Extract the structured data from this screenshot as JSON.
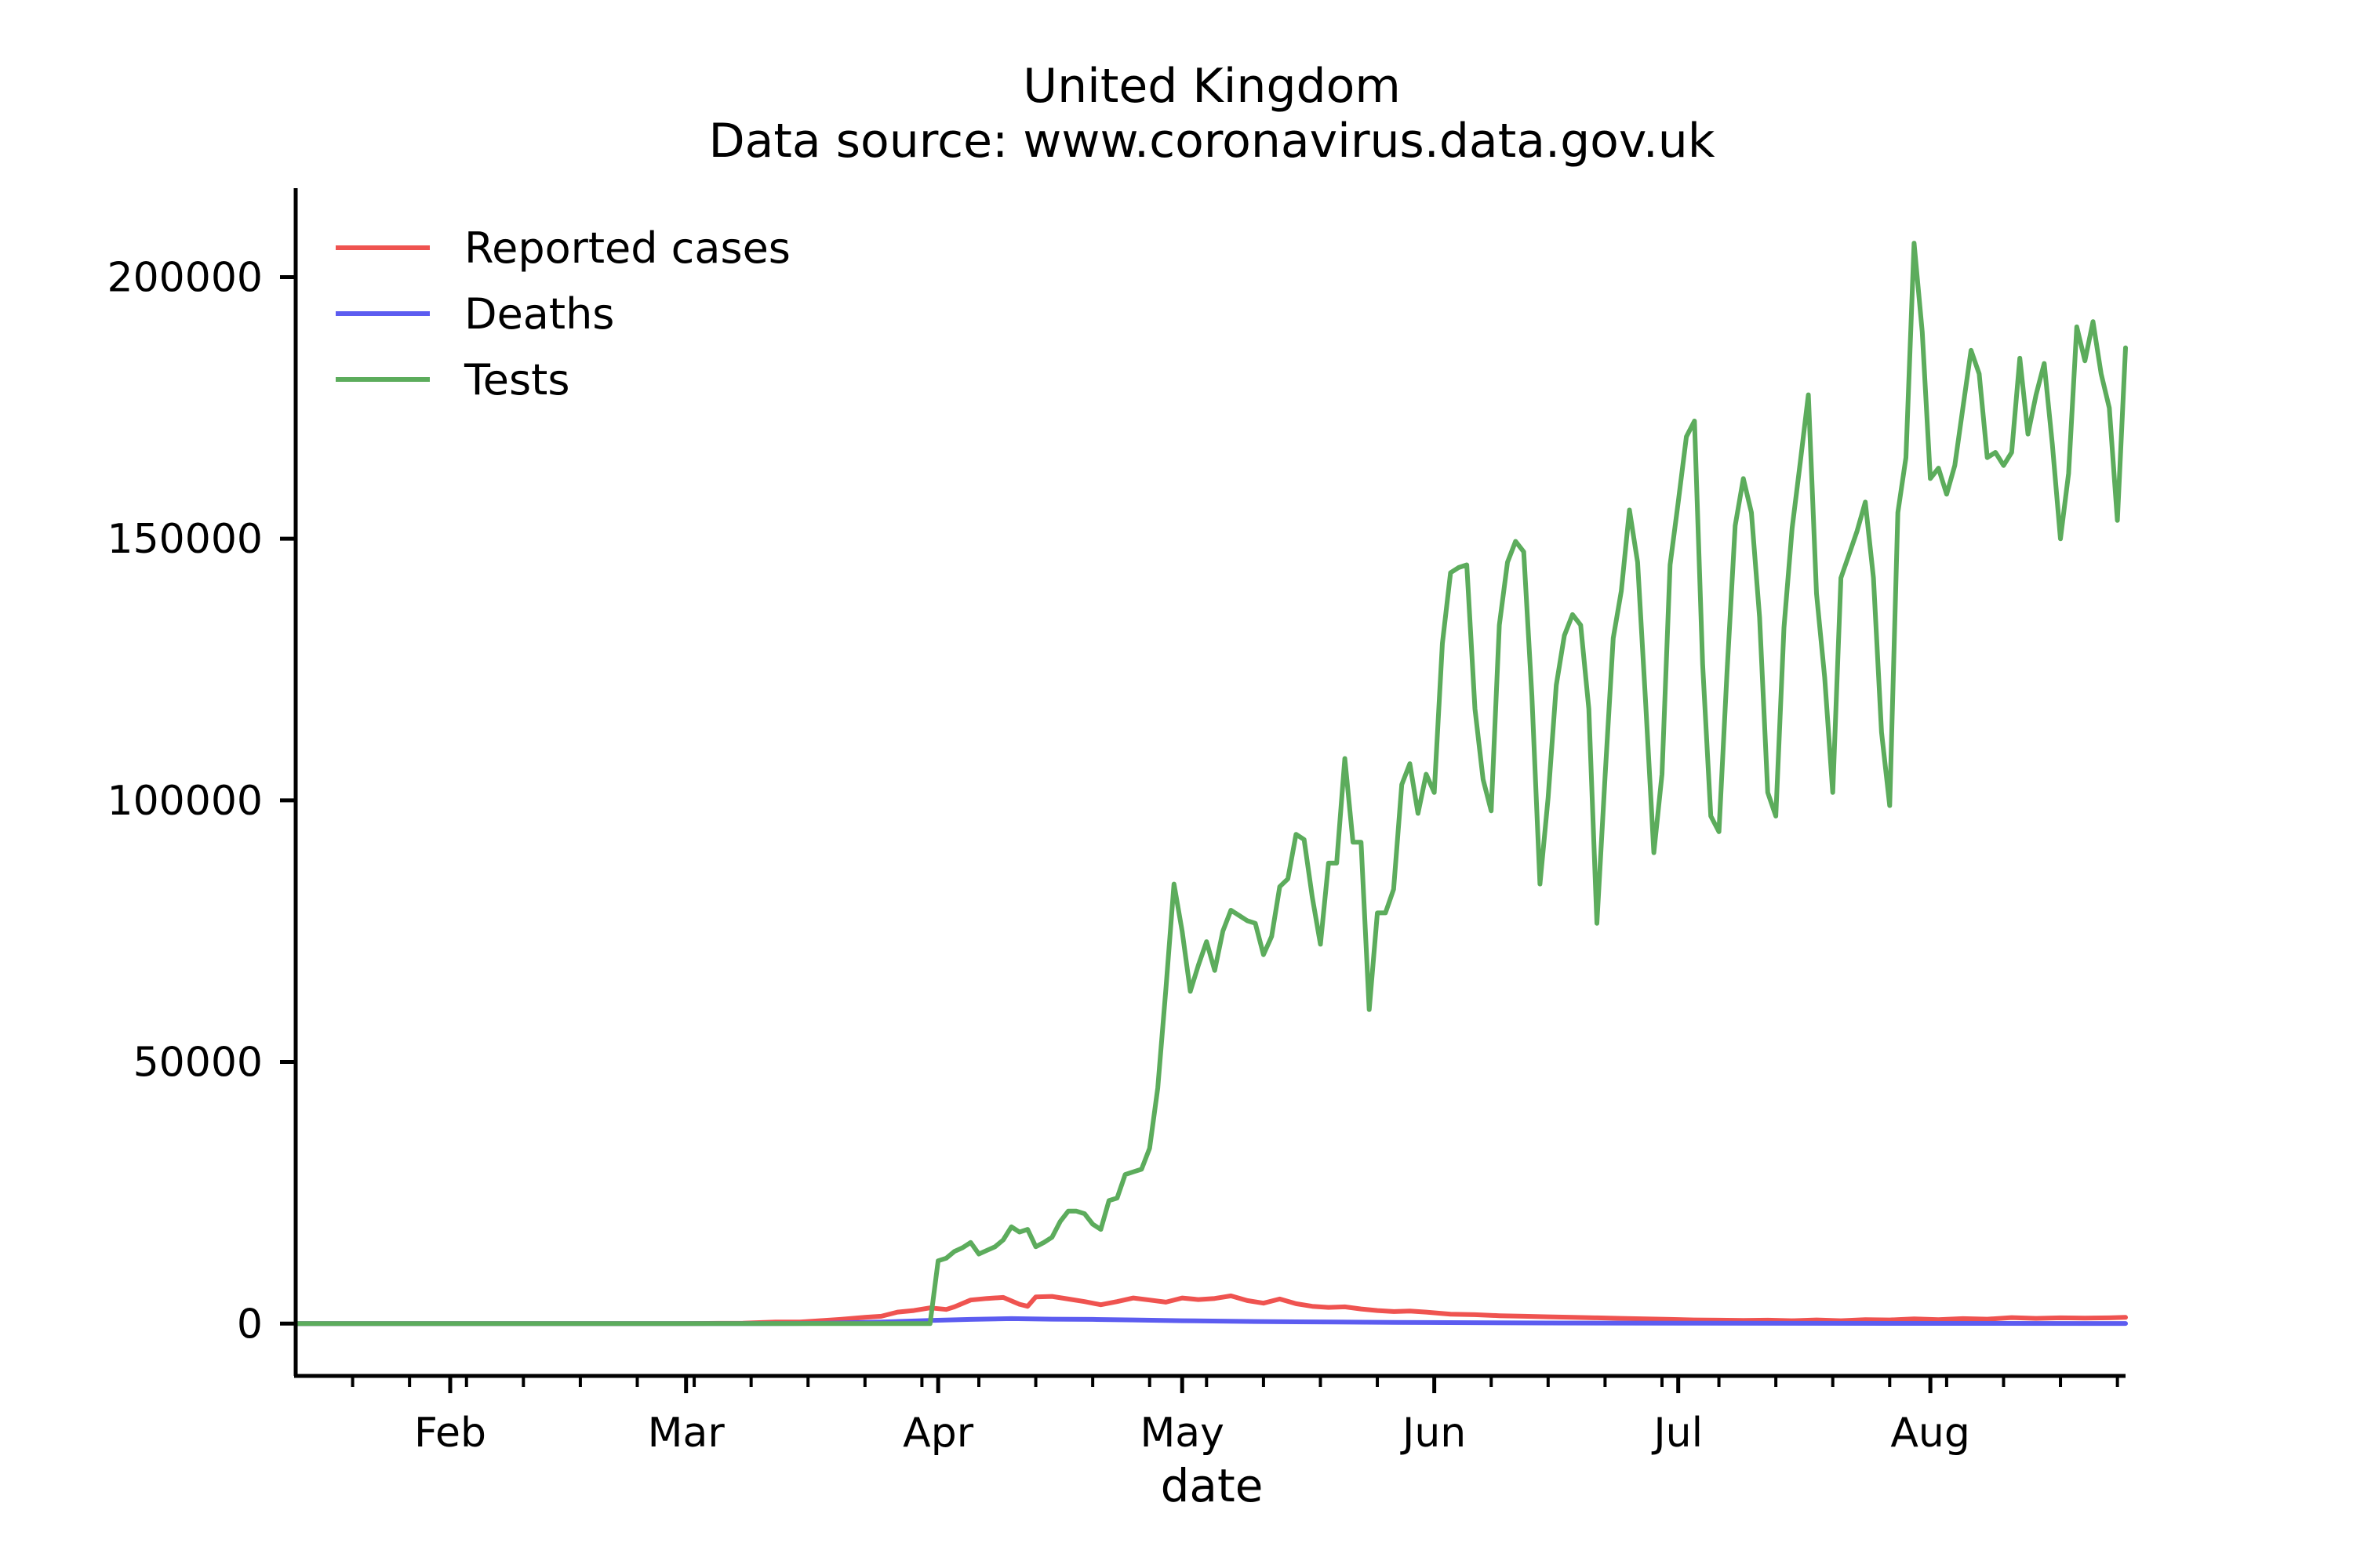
{
  "chart_data": {
    "type": "line",
    "title": "United Kingdom",
    "subtitle": "Data source: www.coronavirus.data.gov.uk",
    "xlabel": "date",
    "ylabel": "",
    "x_range": [
      "2020-01-13",
      "2020-08-25"
    ],
    "ylim": [
      -10000,
      217000
    ],
    "x_ticks": [
      {
        "date": "2020-02-01",
        "label": "Feb"
      },
      {
        "date": "2020-03-01",
        "label": "Mar"
      },
      {
        "date": "2020-04-01",
        "label": "Apr"
      },
      {
        "date": "2020-05-01",
        "label": "May"
      },
      {
        "date": "2020-06-01",
        "label": "Jun"
      },
      {
        "date": "2020-07-01",
        "label": "Jul"
      },
      {
        "date": "2020-08-01",
        "label": "Aug"
      }
    ],
    "y_ticks": [
      {
        "value": 0,
        "label": "0"
      },
      {
        "value": 50000,
        "label": "50000"
      },
      {
        "value": 100000,
        "label": "100000"
      },
      {
        "value": 150000,
        "label": "150000"
      },
      {
        "value": 200000,
        "label": "200000"
      }
    ],
    "grid": false,
    "legend_position": "top-left",
    "series": [
      {
        "name": "Reported cases",
        "color": "#ef5350",
        "points": [
          [
            "2020-01-13",
            0
          ],
          [
            "2020-02-29",
            0
          ],
          [
            "2020-03-05",
            50
          ],
          [
            "2020-03-08",
            80
          ],
          [
            "2020-03-12",
            300
          ],
          [
            "2020-03-15",
            300
          ],
          [
            "2020-03-18",
            600
          ],
          [
            "2020-03-20",
            800
          ],
          [
            "2020-03-23",
            1200
          ],
          [
            "2020-03-25",
            1400
          ],
          [
            "2020-03-27",
            2200
          ],
          [
            "2020-03-29",
            2500
          ],
          [
            "2020-03-31",
            3000
          ],
          [
            "2020-04-02",
            2700
          ],
          [
            "2020-04-03",
            3200
          ],
          [
            "2020-04-05",
            4500
          ],
          [
            "2020-04-07",
            4800
          ],
          [
            "2020-04-09",
            5000
          ],
          [
            "2020-04-11",
            3700
          ],
          [
            "2020-04-12",
            3300
          ],
          [
            "2020-04-13",
            5100
          ],
          [
            "2020-04-15",
            5200
          ],
          [
            "2020-04-17",
            4700
          ],
          [
            "2020-04-19",
            4200
          ],
          [
            "2020-04-21",
            3600
          ],
          [
            "2020-04-23",
            4200
          ],
          [
            "2020-04-25",
            4900
          ],
          [
            "2020-04-27",
            4500
          ],
          [
            "2020-04-29",
            4100
          ],
          [
            "2020-05-01",
            4900
          ],
          [
            "2020-05-03",
            4600
          ],
          [
            "2020-05-05",
            4800
          ],
          [
            "2020-05-07",
            5300
          ],
          [
            "2020-05-09",
            4400
          ],
          [
            "2020-05-11",
            3900
          ],
          [
            "2020-05-13",
            4700
          ],
          [
            "2020-05-15",
            3800
          ],
          [
            "2020-05-17",
            3300
          ],
          [
            "2020-05-19",
            3100
          ],
          [
            "2020-05-21",
            3200
          ],
          [
            "2020-05-23",
            2800
          ],
          [
            "2020-05-25",
            2500
          ],
          [
            "2020-05-27",
            2300
          ],
          [
            "2020-05-29",
            2400
          ],
          [
            "2020-05-31",
            2200
          ],
          [
            "2020-06-03",
            1800
          ],
          [
            "2020-06-06",
            1700
          ],
          [
            "2020-06-09",
            1500
          ],
          [
            "2020-06-12",
            1400
          ],
          [
            "2020-06-15",
            1300
          ],
          [
            "2020-06-18",
            1200
          ],
          [
            "2020-06-21",
            1100
          ],
          [
            "2020-06-24",
            1000
          ],
          [
            "2020-06-27",
            900
          ],
          [
            "2020-06-30",
            800
          ],
          [
            "2020-07-03",
            700
          ],
          [
            "2020-07-06",
            650
          ],
          [
            "2020-07-09",
            600
          ],
          [
            "2020-07-12",
            650
          ],
          [
            "2020-07-15",
            550
          ],
          [
            "2020-07-18",
            700
          ],
          [
            "2020-07-21",
            550
          ],
          [
            "2020-07-24",
            750
          ],
          [
            "2020-07-27",
            700
          ],
          [
            "2020-07-30",
            900
          ],
          [
            "2020-08-02",
            750
          ],
          [
            "2020-08-05",
            950
          ],
          [
            "2020-08-08",
            850
          ],
          [
            "2020-08-11",
            1150
          ],
          [
            "2020-08-14",
            1000
          ],
          [
            "2020-08-17",
            1100
          ],
          [
            "2020-08-20",
            1050
          ],
          [
            "2020-08-23",
            1100
          ],
          [
            "2020-08-25",
            1200
          ]
        ]
      },
      {
        "name": "Deaths",
        "color": "#5c5cf0",
        "points": [
          [
            "2020-01-13",
            0
          ],
          [
            "2020-03-10",
            0
          ],
          [
            "2020-03-18",
            50
          ],
          [
            "2020-03-25",
            300
          ],
          [
            "2020-03-31",
            600
          ],
          [
            "2020-04-05",
            800
          ],
          [
            "2020-04-10",
            950
          ],
          [
            "2020-04-15",
            850
          ],
          [
            "2020-04-20",
            800
          ],
          [
            "2020-04-25",
            700
          ],
          [
            "2020-05-01",
            550
          ],
          [
            "2020-05-10",
            400
          ],
          [
            "2020-05-20",
            300
          ],
          [
            "2020-05-31",
            200
          ],
          [
            "2020-06-15",
            120
          ],
          [
            "2020-07-01",
            80
          ],
          [
            "2020-07-15",
            60
          ],
          [
            "2020-08-01",
            40
          ],
          [
            "2020-08-25",
            20
          ]
        ]
      },
      {
        "name": "Tests",
        "color": "#5cac5c",
        "points": [
          [
            "2020-01-13",
            0
          ],
          [
            "2020-03-31",
            0
          ],
          [
            "2020-04-01",
            12000
          ],
          [
            "2020-04-02",
            12500
          ],
          [
            "2020-04-03",
            13800
          ],
          [
            "2020-04-04",
            14500
          ],
          [
            "2020-04-05",
            15500
          ],
          [
            "2020-04-06",
            13300
          ],
          [
            "2020-04-07",
            14000
          ],
          [
            "2020-04-08",
            14700
          ],
          [
            "2020-04-09",
            16000
          ],
          [
            "2020-04-10",
            18500
          ],
          [
            "2020-04-11",
            17500
          ],
          [
            "2020-04-12",
            18000
          ],
          [
            "2020-04-13",
            14700
          ],
          [
            "2020-04-14",
            15500
          ],
          [
            "2020-04-15",
            16500
          ],
          [
            "2020-04-16",
            19500
          ],
          [
            "2020-04-17",
            21500
          ],
          [
            "2020-04-18",
            21500
          ],
          [
            "2020-04-19",
            21000
          ],
          [
            "2020-04-20",
            19000
          ],
          [
            "2020-04-21",
            18000
          ],
          [
            "2020-04-22",
            23500
          ],
          [
            "2020-04-23",
            24000
          ],
          [
            "2020-04-24",
            28500
          ],
          [
            "2020-04-25",
            29000
          ],
          [
            "2020-04-26",
            29500
          ],
          [
            "2020-04-27",
            33500
          ],
          [
            "2020-04-28",
            45000
          ],
          [
            "2020-04-29",
            64000
          ],
          [
            "2020-04-30",
            84000
          ],
          [
            "2020-05-01",
            75000
          ],
          [
            "2020-05-02",
            63500
          ],
          [
            "2020-05-03",
            68500
          ],
          [
            "2020-05-04",
            73000
          ],
          [
            "2020-05-05",
            67500
          ],
          [
            "2020-05-06",
            75000
          ],
          [
            "2020-05-07",
            79000
          ],
          [
            "2020-05-08",
            78000
          ],
          [
            "2020-05-09",
            77000
          ],
          [
            "2020-05-10",
            76500
          ],
          [
            "2020-05-11",
            70500
          ],
          [
            "2020-05-12",
            74000
          ],
          [
            "2020-05-13",
            83500
          ],
          [
            "2020-05-14",
            85000
          ],
          [
            "2020-05-15",
            93500
          ],
          [
            "2020-05-16",
            92500
          ],
          [
            "2020-05-17",
            81500
          ],
          [
            "2020-05-18",
            72500
          ],
          [
            "2020-05-19",
            88000
          ],
          [
            "2020-05-20",
            88000
          ],
          [
            "2020-05-21",
            108000
          ],
          [
            "2020-05-22",
            92000
          ],
          [
            "2020-05-23",
            92000
          ],
          [
            "2020-05-24",
            60000
          ],
          [
            "2020-05-25",
            78500
          ],
          [
            "2020-05-26",
            78500
          ],
          [
            "2020-05-27",
            83000
          ],
          [
            "2020-05-28",
            103000
          ],
          [
            "2020-05-29",
            107000
          ],
          [
            "2020-05-30",
            97500
          ],
          [
            "2020-05-31",
            105000
          ],
          [
            "2020-06-01",
            101500
          ],
          [
            "2020-06-02",
            130000
          ],
          [
            "2020-06-03",
            143500
          ],
          [
            "2020-06-04",
            144500
          ],
          [
            "2020-06-05",
            145000
          ],
          [
            "2020-06-06",
            117500
          ],
          [
            "2020-06-07",
            104000
          ],
          [
            "2020-06-08",
            98000
          ],
          [
            "2020-06-09",
            133500
          ],
          [
            "2020-06-10",
            145500
          ],
          [
            "2020-06-11",
            149500
          ],
          [
            "2020-06-12",
            147500
          ],
          [
            "2020-06-13",
            120000
          ],
          [
            "2020-06-14",
            84000
          ],
          [
            "2020-06-15",
            100500
          ],
          [
            "2020-06-16",
            122000
          ],
          [
            "2020-06-17",
            131500
          ],
          [
            "2020-06-18",
            135500
          ],
          [
            "2020-06-19",
            133500
          ],
          [
            "2020-06-20",
            117500
          ],
          [
            "2020-06-21",
            76500
          ],
          [
            "2020-06-22",
            104500
          ],
          [
            "2020-06-23",
            131000
          ],
          [
            "2020-06-24",
            140000
          ],
          [
            "2020-06-25",
            155500
          ],
          [
            "2020-06-26",
            145500
          ],
          [
            "2020-06-27",
            118500
          ],
          [
            "2020-06-28",
            90000
          ],
          [
            "2020-06-29",
            105000
          ],
          [
            "2020-06-30",
            145000
          ],
          [
            "2020-07-01",
            157000
          ],
          [
            "2020-07-02",
            169500
          ],
          [
            "2020-07-03",
            172500
          ],
          [
            "2020-07-04",
            126000
          ],
          [
            "2020-07-05",
            97000
          ],
          [
            "2020-07-06",
            94000
          ],
          [
            "2020-07-07",
            124500
          ],
          [
            "2020-07-08",
            152500
          ],
          [
            "2020-07-09",
            161500
          ],
          [
            "2020-07-10",
            155000
          ],
          [
            "2020-07-11",
            135000
          ],
          [
            "2020-07-12",
            101500
          ],
          [
            "2020-07-13",
            97000
          ],
          [
            "2020-07-14",
            133000
          ],
          [
            "2020-07-15",
            152000
          ],
          [
            "2020-07-16",
            164500
          ],
          [
            "2020-07-17",
            177500
          ],
          [
            "2020-07-18",
            139500
          ],
          [
            "2020-07-19",
            123500
          ],
          [
            "2020-07-20",
            101500
          ],
          [
            "2020-07-21",
            142500
          ],
          [
            "2020-07-22",
            147000
          ],
          [
            "2020-07-23",
            151500
          ],
          [
            "2020-07-24",
            157000
          ],
          [
            "2020-07-25",
            142500
          ],
          [
            "2020-07-26",
            113000
          ],
          [
            "2020-07-27",
            99000
          ],
          [
            "2020-07-28",
            155000
          ],
          [
            "2020-07-29",
            165500
          ],
          [
            "2020-07-30",
            206500
          ],
          [
            "2020-07-31",
            189500
          ],
          [
            "2020-08-01",
            161500
          ],
          [
            "2020-08-02",
            163500
          ],
          [
            "2020-08-03",
            158500
          ],
          [
            "2020-08-04",
            164000
          ],
          [
            "2020-08-05",
            175000
          ],
          [
            "2020-08-06",
            186000
          ],
          [
            "2020-08-07",
            181500
          ],
          [
            "2020-08-08",
            165500
          ],
          [
            "2020-08-09",
            166500
          ],
          [
            "2020-08-10",
            164000
          ],
          [
            "2020-08-11",
            166500
          ],
          [
            "2020-08-12",
            184500
          ],
          [
            "2020-08-13",
            170000
          ],
          [
            "2020-08-14",
            177500
          ],
          [
            "2020-08-15",
            183500
          ],
          [
            "2020-08-16",
            168000
          ],
          [
            "2020-08-17",
            150000
          ],
          [
            "2020-08-18",
            162500
          ],
          [
            "2020-08-19",
            190500
          ],
          [
            "2020-08-20",
            184000
          ],
          [
            "2020-08-21",
            191500
          ],
          [
            "2020-08-22",
            181500
          ],
          [
            "2020-08-23",
            175000
          ],
          [
            "2020-08-24",
            153500
          ],
          [
            "2020-08-25",
            186500
          ]
        ]
      }
    ]
  }
}
